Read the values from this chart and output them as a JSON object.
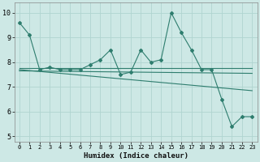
{
  "xlabel": "Humidex (Indice chaleur)",
  "background_color": "#cde8e5",
  "grid_color": "#b0d4d0",
  "line_color": "#2e7d6e",
  "xlim": [
    -0.5,
    23.5
  ],
  "ylim": [
    4.8,
    10.4
  ],
  "yticks": [
    5,
    6,
    7,
    8,
    9,
    10
  ],
  "xticks": [
    0,
    1,
    2,
    3,
    4,
    5,
    6,
    7,
    8,
    9,
    10,
    11,
    12,
    13,
    14,
    15,
    16,
    17,
    18,
    19,
    20,
    21,
    22,
    23
  ],
  "series1": {
    "x": [
      0,
      1,
      2,
      3,
      4,
      5,
      6,
      7,
      8,
      9,
      10,
      11,
      12,
      13,
      14,
      15,
      16,
      17,
      18,
      19,
      20,
      21,
      22,
      23
    ],
    "y": [
      9.6,
      9.1,
      7.7,
      7.8,
      7.7,
      7.7,
      7.7,
      7.9,
      8.1,
      8.5,
      7.5,
      7.6,
      8.5,
      8.0,
      8.1,
      10.0,
      9.2,
      8.5,
      7.7,
      7.7,
      6.5,
      5.4,
      5.8,
      5.8
    ]
  },
  "series2_linear": {
    "x": [
      0,
      23
    ],
    "y": [
      7.75,
      7.75
    ]
  },
  "series3_linear": {
    "x": [
      0,
      23
    ],
    "y": [
      7.65,
      7.55
    ]
  },
  "series4_linear": {
    "x": [
      0,
      23
    ],
    "y": [
      7.7,
      6.85
    ]
  }
}
